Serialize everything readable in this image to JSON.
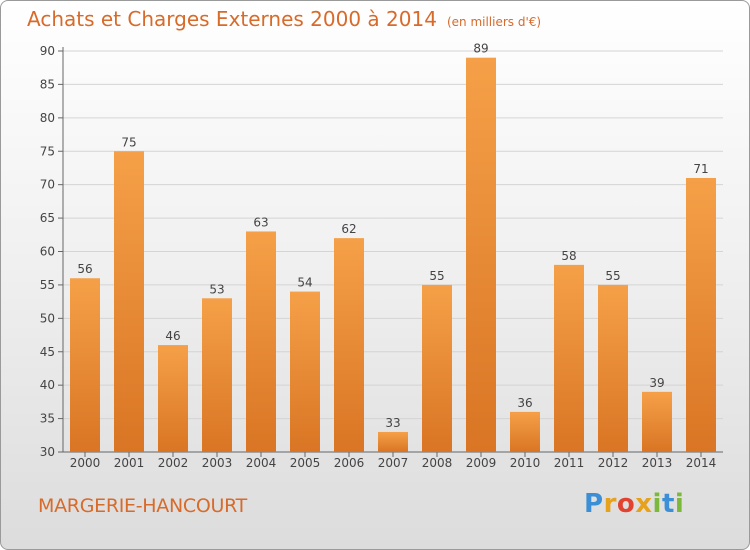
{
  "header": {
    "title": "Achats et Charges Externes 2000 à 2014",
    "subtitle": "(en milliers d'€)"
  },
  "footer": {
    "commune": "MARGERIE-HANCOURT",
    "logo_letters": [
      "P",
      "r",
      "o",
      "x",
      "i",
      "t",
      "i"
    ],
    "logo_colors": [
      "#3a8fd6",
      "#e6a21c",
      "#e2432f",
      "#e6a21c",
      "#7cb83a",
      "#3a8fd6",
      "#7cb83a"
    ]
  },
  "colors": {
    "bar_light": "#f5a048",
    "bar_dark": "#d97524",
    "text_accent": "#d86a2a"
  },
  "chart_data": {
    "type": "bar",
    "title": "Achats et Charges Externes 2000 à 2014",
    "subtitle": "(en milliers d'€)",
    "xlabel": "",
    "ylabel": "",
    "categories": [
      "2000",
      "2001",
      "2002",
      "2003",
      "2004",
      "2005",
      "2006",
      "2007",
      "2008",
      "2009",
      "2010",
      "2011",
      "2012",
      "2013",
      "2014"
    ],
    "values": [
      56,
      75,
      46,
      53,
      63,
      54,
      62,
      33,
      55,
      89,
      36,
      58,
      55,
      39,
      71
    ],
    "ylim": [
      30,
      90
    ],
    "yticks": [
      30,
      35,
      40,
      45,
      50,
      55,
      60,
      65,
      70,
      75,
      80,
      85,
      90
    ],
    "grid": true,
    "data_labels": true
  }
}
